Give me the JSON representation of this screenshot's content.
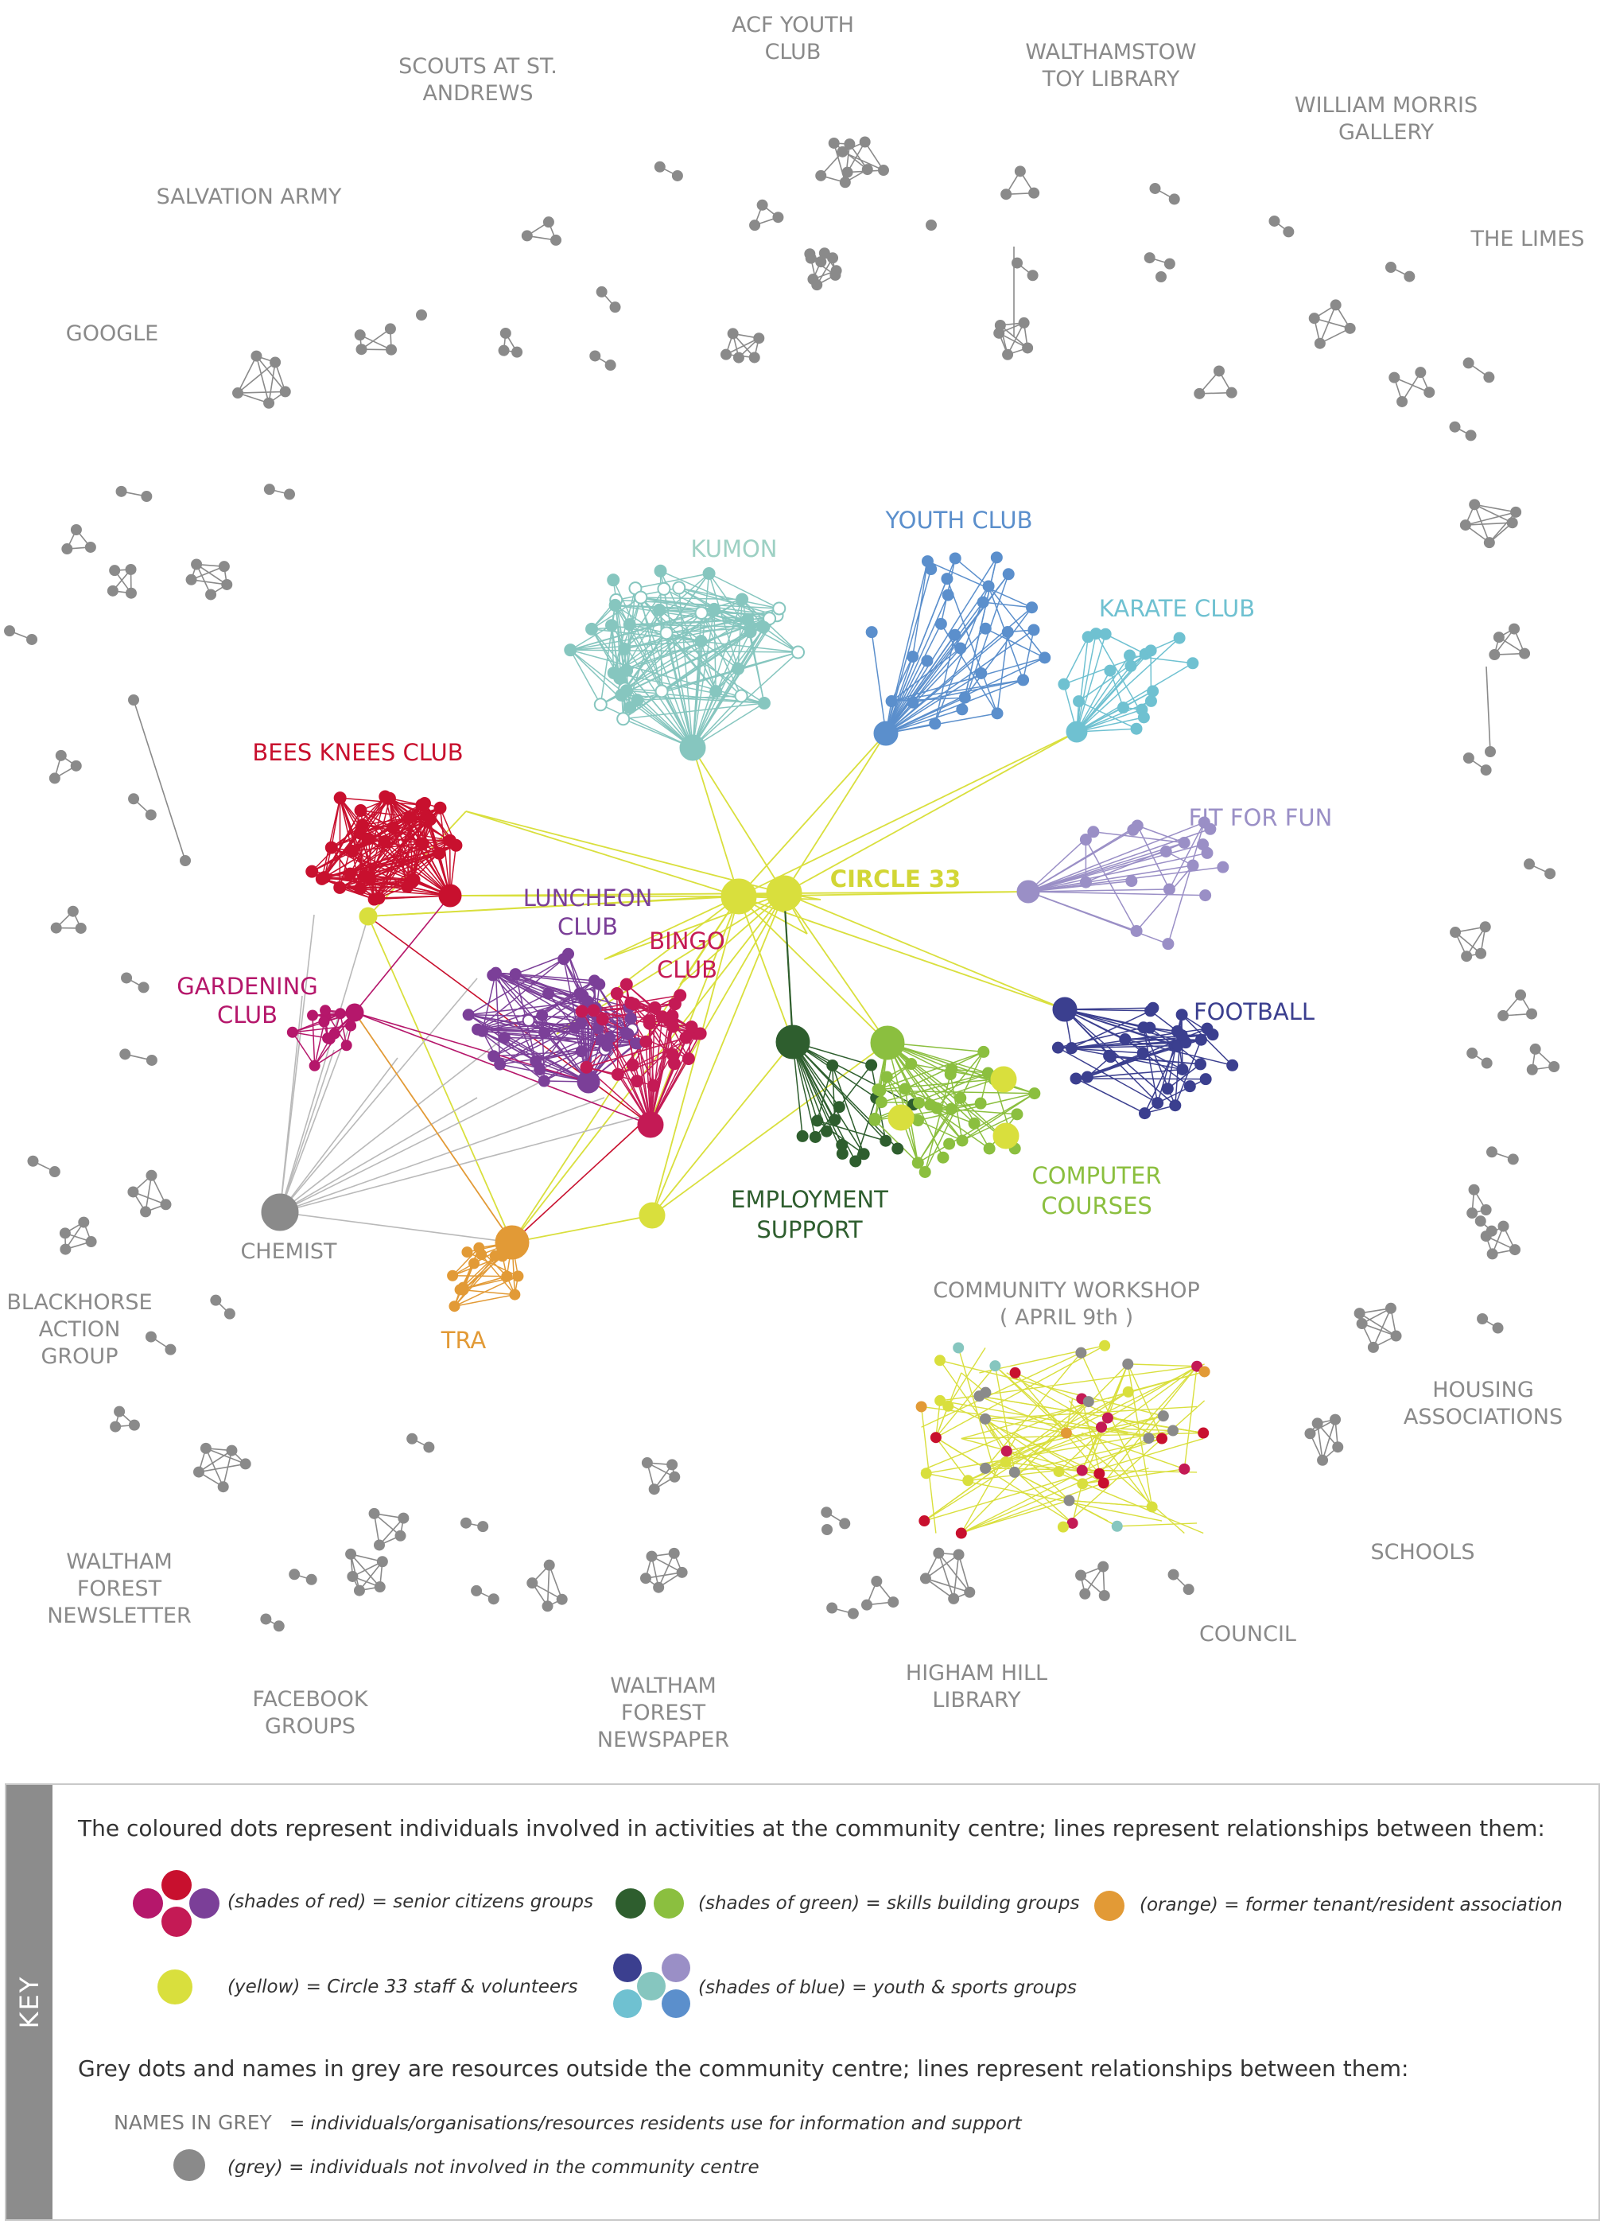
{
  "colors": {
    "red": "#c8102e",
    "magenta": "#b5176b",
    "purple": "#7b3f98",
    "crimson": "#c41a55",
    "yellow": "#d9df3d",
    "orange": "#e29a36",
    "dark_green": "#2e5e2e",
    "light_green": "#8bbf3f",
    "navy": "#3b3f8f",
    "blue": "#5b8fcc",
    "lavender": "#9a8fc6",
    "teal": "#86c6bf",
    "sky": "#6fc1d1",
    "grey": "#8a8a8a"
  },
  "clusters": {
    "circle33": "CIRCLE 33",
    "kumon": "KUMON",
    "youth_club": "YOUTH CLUB",
    "karate": "KARATE CLUB",
    "fit_for_fun": "FIT FOR FUN",
    "football": "FOOTBALL",
    "bees_knees": "BEES KNEES CLUB",
    "luncheon": [
      "LUNCHEON",
      "CLUB"
    ],
    "bingo": [
      "BINGO",
      "CLUB"
    ],
    "gardening": [
      "GARDENING",
      "CLUB"
    ],
    "chemist": "CHEMIST",
    "tra": "TRA",
    "employment": [
      "EMPLOYMENT",
      "SUPPORT"
    ],
    "computer": [
      "COMPUTER",
      "COURSES"
    ],
    "workshop": [
      "COMMUNITY WORKSHOP",
      "( APRIL 9th )"
    ]
  },
  "grey_labels": {
    "acf": [
      "ACF YOUTH",
      "CLUB"
    ],
    "scouts": [
      "SCOUTS AT ST.",
      "ANDREWS"
    ],
    "toy_library": [
      "WALTHAMSTOW",
      "TOY LIBRARY"
    ],
    "william_morris": [
      "WILLIAM MORRIS",
      "GALLERY"
    ],
    "salvation": [
      "SALVATION ARMY"
    ],
    "limes": [
      "THE LIMES"
    ],
    "google": [
      "GOOGLE"
    ],
    "blackhorse": [
      "BLACKHORSE",
      "ACTION",
      "GROUP"
    ],
    "housing": [
      "HOUSING",
      "ASSOCIATIONS"
    ],
    "schools": [
      "SCHOOLS"
    ],
    "wf_newsletter": [
      "WALTHAM",
      "FOREST",
      "NEWSLETTER"
    ],
    "council": [
      "COUNCIL"
    ],
    "facebook": [
      "FACEBOOK",
      "GROUPS"
    ],
    "wf_newspaper": [
      "WALTHAM",
      "FOREST",
      "NEWSPAPER"
    ],
    "higham": [
      "HIGHAM HILL",
      "LIBRARY"
    ]
  },
  "key": {
    "tab": "KEY",
    "intro": "The coloured dots represent individuals involved in activities at the community centre; lines represent relationships between them:",
    "red_desc": "(shades of red) = senior citizens groups",
    "green_desc": "(shades of green) = skills building groups",
    "orange_desc": "(orange) = former tenant/resident association",
    "yellow_desc": "(yellow) = Circle 33 staff & volunteers",
    "blue_desc": "(shades of blue) = youth & sports groups",
    "grey_intro": "Grey dots and names in grey are resources outside the community centre; lines represent relationships between them:",
    "names_label": "NAMES IN GREY",
    "names_desc": "= individuals/organisations/resources residents use for information and support",
    "grey_desc": "(grey) = individuals not involved in the community centre"
  }
}
